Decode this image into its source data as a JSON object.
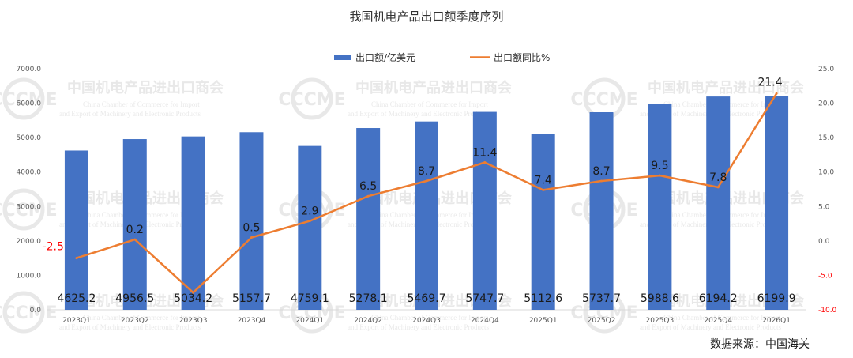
{
  "chart_data": {
    "type": "bar+line",
    "title": "我国机电产品出口额季度序列",
    "categories": [
      "2023Q1",
      "2023Q2",
      "2023Q3",
      "2023Q4",
      "2024Q1",
      "2024Q2",
      "2024Q3",
      "2024Q4",
      "2025Q1",
      "2025Q2",
      "2025Q3",
      "2025Q4",
      "2026Q1"
    ],
    "series": [
      {
        "name": "出口额/亿美元",
        "type": "bar",
        "axis": "left",
        "color": "#4472C4",
        "values": [
          4625.2,
          4956.5,
          5034.2,
          5157.7,
          4759.1,
          5278.1,
          5469.7,
          5747.7,
          5112.6,
          5737.7,
          5988.6,
          6194.2,
          6199.9
        ],
        "labels": [
          "4625.2",
          "4956.5",
          "5034.2",
          "5157.7",
          "4759.1",
          "5278.1",
          "5469.7",
          "5747.7",
          "5112.6",
          "5737.7",
          "5988.6",
          "6194.2",
          "6199.9"
        ]
      },
      {
        "name": "出口额同比%",
        "type": "line",
        "axis": "right",
        "color": "#ED7D31",
        "values": [
          -2.5,
          0.2,
          -7.5,
          0.5,
          2.9,
          6.5,
          8.7,
          11.4,
          7.4,
          8.7,
          9.5,
          7.8,
          21.4
        ],
        "labels": [
          "-2.5",
          "0.2",
          "",
          "0.5",
          "2.9",
          "6.5",
          "8.7",
          "11.4",
          "7.4",
          "8.7",
          "9.5",
          "7.8",
          "21.4"
        ]
      }
    ],
    "y_left": {
      "min": 0,
      "max": 7000,
      "ticks": [
        "0.0",
        "1000.0",
        "2000.0",
        "3000.0",
        "4000.0",
        "5000.0",
        "6000.0",
        "7000.0"
      ]
    },
    "y_right": {
      "min": -10,
      "max": 25,
      "ticks": [
        "-10.0",
        "-5.0",
        "0.0",
        "5.0",
        "10.0",
        "15.0",
        "20.0",
        "25.0"
      ]
    },
    "legend_position": "top-center",
    "grid": false,
    "negative_color": "#FF0000"
  },
  "source_note": "数据来源：中国海关",
  "watermark": {
    "logo": "CCCME",
    "cn": "中国机电产品进出口商会",
    "en1": "China Chamber of Commerce for Import",
    "en2": "and Export of Machinery and Electronic Products"
  }
}
